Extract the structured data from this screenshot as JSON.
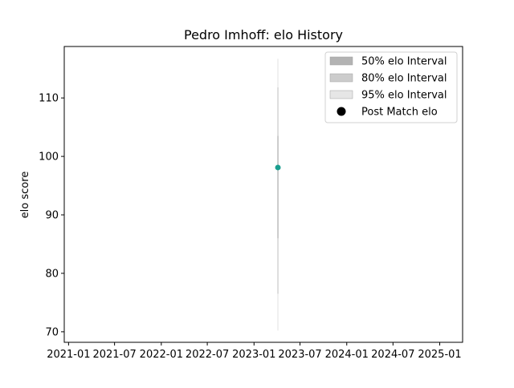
{
  "chart_data": {
    "type": "scatter",
    "title": "Pedro Imhoff: elo History",
    "xlabel": "",
    "ylabel": "elo score",
    "xlim": [
      "2020-12-15",
      "2025-04-01"
    ],
    "ylim": [
      68.2,
      118.8
    ],
    "x_ticks": [
      "2021-01",
      "2021-07",
      "2022-01",
      "2022-07",
      "2023-01",
      "2023-07",
      "2024-01",
      "2024-07",
      "2025-01"
    ],
    "y_ticks": [
      70,
      80,
      90,
      100,
      110
    ],
    "grid": false,
    "legend_position": "top-right",
    "legend": [
      {
        "label": "50% elo Interval",
        "kind": "patch",
        "color": "#b3b3b3"
      },
      {
        "label": "80% elo Interval",
        "kind": "patch",
        "color": "#cccccc"
      },
      {
        "label": "95% elo Interval",
        "kind": "patch",
        "color": "#e6e6e6"
      },
      {
        "label": "Post Match elo",
        "kind": "dot",
        "color": "#000000"
      }
    ],
    "series": [
      {
        "date": "2023-04-05",
        "elo": 98.1,
        "color": "#1a9e8f",
        "interval_95": [
          70.2,
          116.7
        ],
        "interval_80": [
          76.5,
          111.8
        ],
        "interval_50": [
          86.0,
          103.5
        ]
      }
    ]
  }
}
